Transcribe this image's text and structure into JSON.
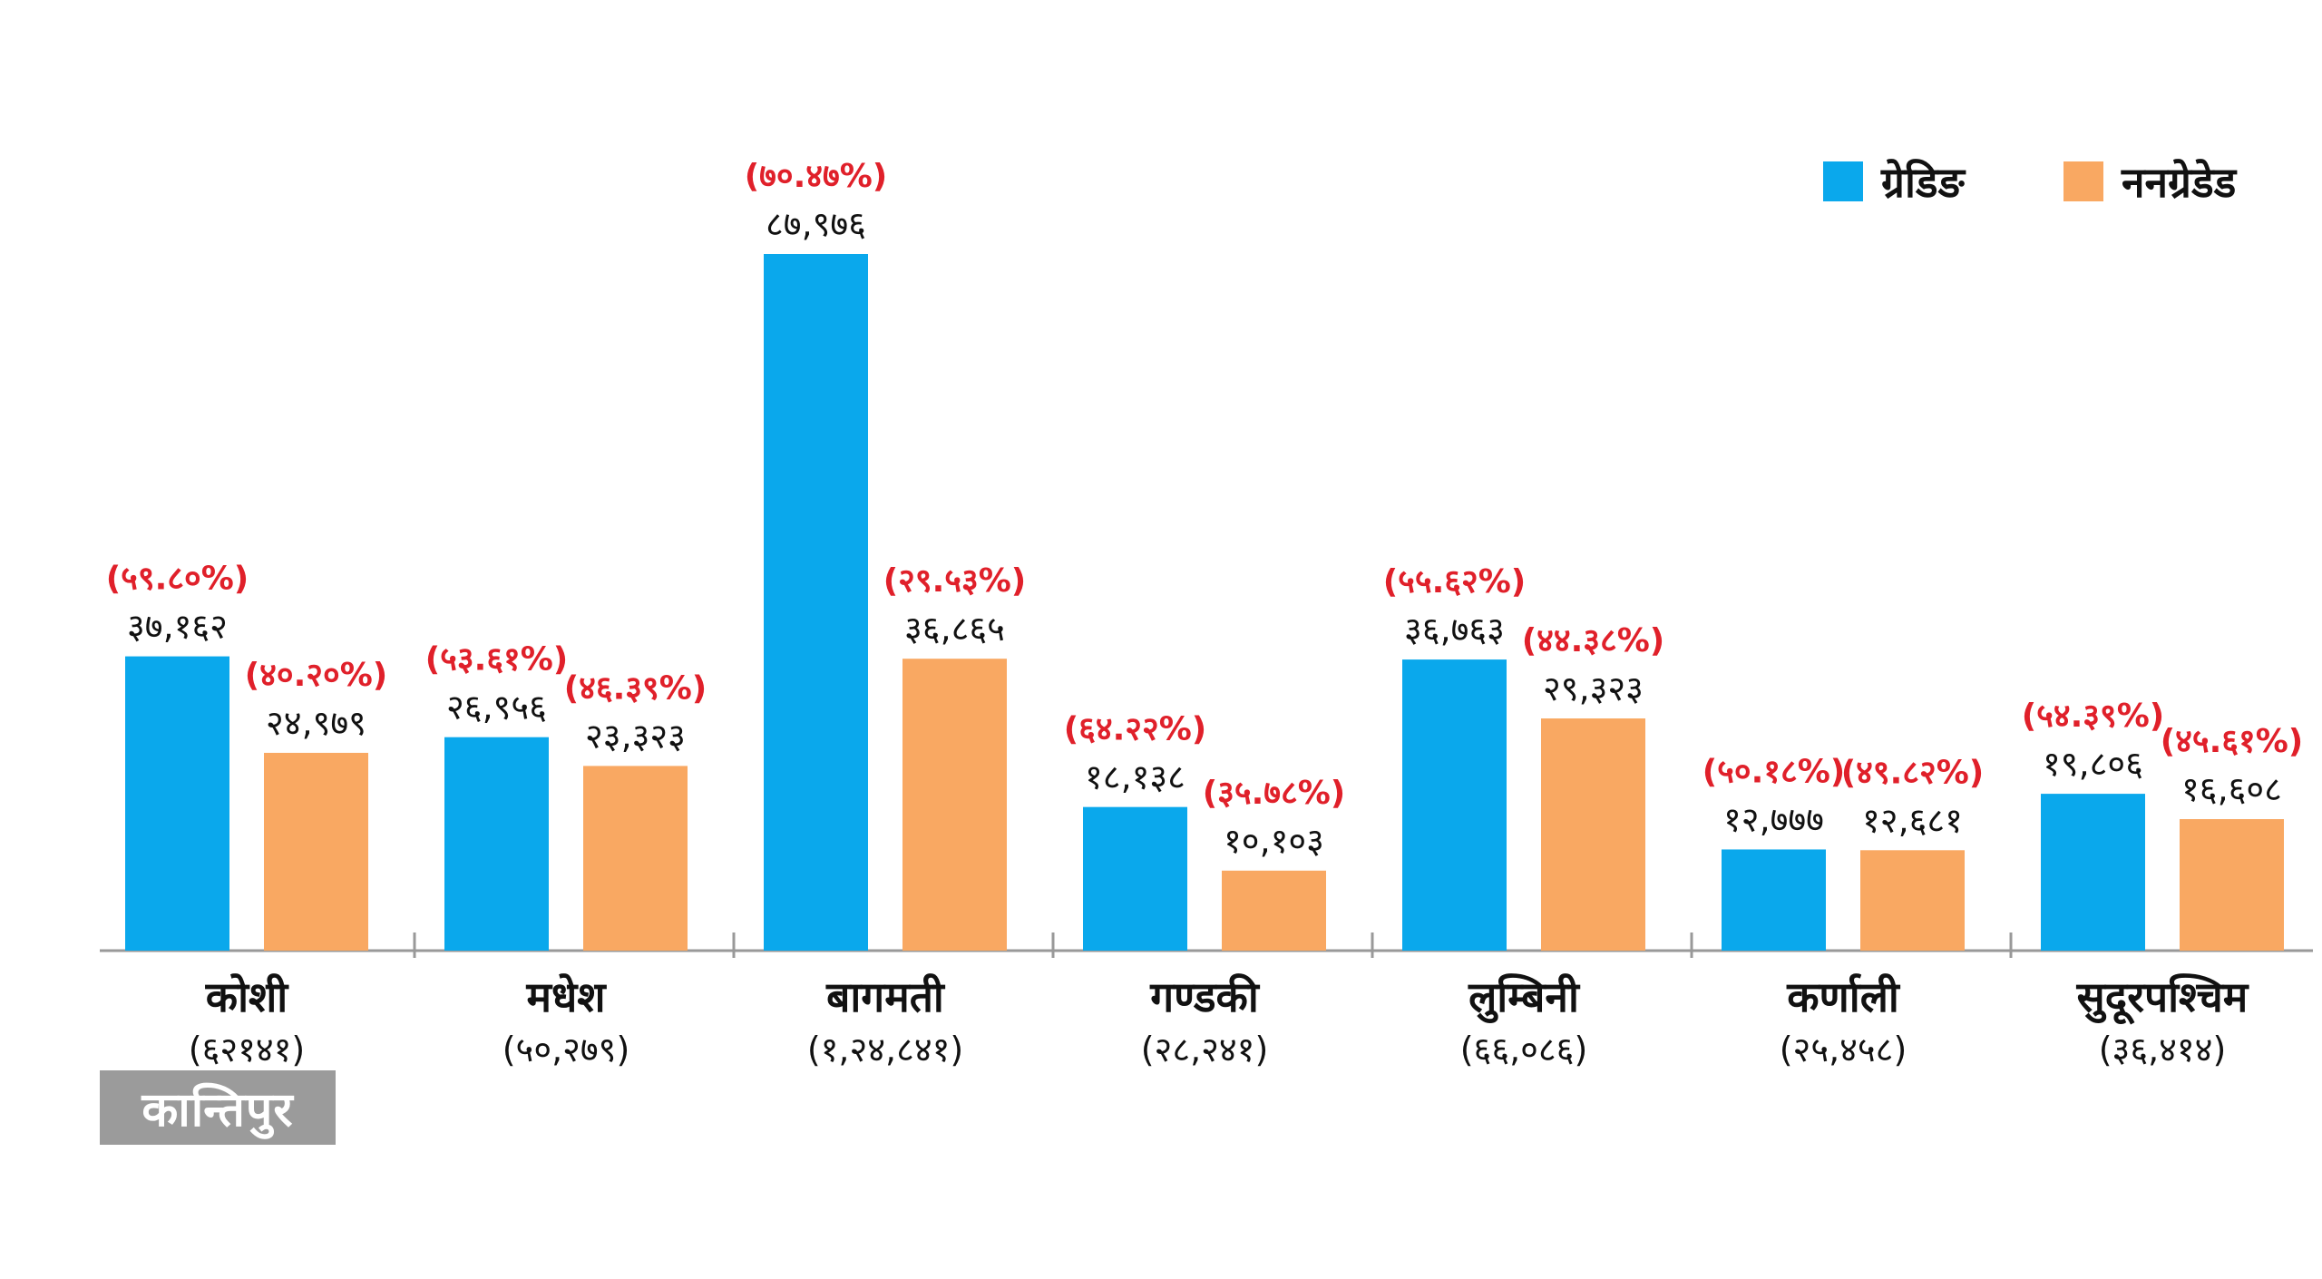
{
  "chart_data": {
    "type": "bar",
    "categories": [
      "कोशी",
      "मधेश",
      "बागमती",
      "गण्डकी",
      "लुम्बिनी",
      "कर्णाली",
      "सुदूरपश्चिम"
    ],
    "category_totals": [
      "(६२१४१)",
      "(५०,२७९)",
      "(१,२४,८४१)",
      "(२८,२४१)",
      "(६६,०८६)",
      "(२५,४५८)",
      "(३६,४१४)"
    ],
    "series": [
      {
        "name": "ग्रेडिङ",
        "color": "#0aa8ec",
        "values": [
          37162,
          26956,
          87976,
          18138,
          36763,
          12777,
          19806
        ],
        "value_labels": [
          "३७,१६२",
          "२६,९५६",
          "८७,९७६",
          "१८,१३८",
          "३६,७६३",
          "१२,७७७",
          "१९,८०६"
        ],
        "percent_labels": [
          "(५९.८०%)",
          "(५३.६१%)",
          "(७०.४७%)",
          "(६४.२२%)",
          "(५५.६२%)",
          "(५०.१८%)",
          "(५४.३९%)"
        ]
      },
      {
        "name": "ननग्रेडेड",
        "color": "#f9a862",
        "values": [
          24979,
          23323,
          36865,
          10103,
          29323,
          12681,
          16608
        ],
        "value_labels": [
          "२४,९७९",
          "२३,३२३",
          "३६,८६५",
          "१०,१०३",
          "२९,३२३",
          "१२,६८१",
          "१६,६०८"
        ],
        "percent_labels": [
          "(४०.२०%)",
          "(४६.३९%)",
          "(२९.५३%)",
          "(३५.७८%)",
          "(४४.३८%)",
          "(४९.८२%)",
          "(४५.६१%)"
        ]
      }
    ],
    "percent_color": "#e0202a",
    "axis_color": "#999999"
  },
  "watermark": {
    "text": "कान्तिपुर"
  }
}
